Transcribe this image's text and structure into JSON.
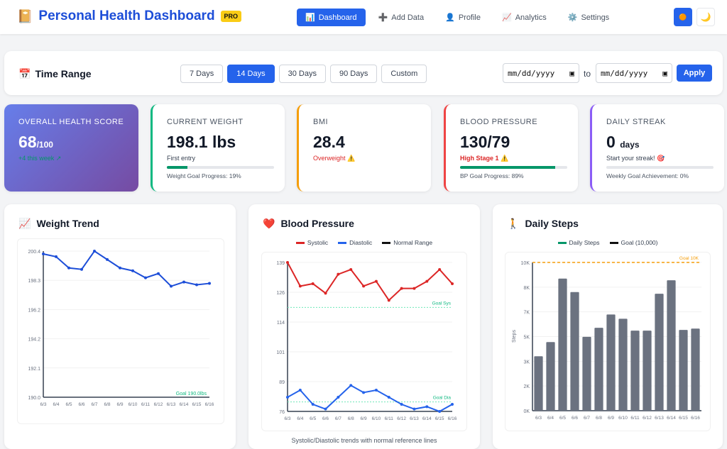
{
  "header": {
    "logo_icon": "📔",
    "title": "Personal Health Dashboard",
    "badge": "PRO",
    "nav": [
      {
        "icon": "📊",
        "label": "Dashboard"
      },
      {
        "icon": "➕",
        "label": "Add Data"
      },
      {
        "icon": "👤",
        "label": "Profile"
      },
      {
        "icon": "📈",
        "label": "Analytics"
      },
      {
        "icon": "⚙️",
        "label": "Settings"
      }
    ],
    "light_icon": "🟠",
    "dark_icon": "🌙"
  },
  "time_range": {
    "icon": "📅",
    "title": "Time Range",
    "options": [
      "7 Days",
      "14 Days",
      "30 Days",
      "90 Days",
      "Custom"
    ],
    "selected": "14 Days",
    "start_placeholder": "mm/dd/yyyy",
    "end_placeholder": "mm/dd/yyyy",
    "to": "to",
    "apply": "Apply"
  },
  "stats": {
    "health": {
      "label": "OVERALL HEALTH SCORE",
      "value": "68",
      "suffix": "/100",
      "change": "+4 this week ↗"
    },
    "weight": {
      "label": "CURRENT WEIGHT",
      "value": "198.1 lbs",
      "sub": "First entry",
      "progress": 19,
      "foot": "Weight Goal Progress: 19%"
    },
    "bmi": {
      "label": "BMI",
      "value": "28.4",
      "sub": "Overweight ⚠️"
    },
    "bp": {
      "label": "BLOOD PRESSURE",
      "value": "130/79",
      "sub": "High Stage 1 ⚠️",
      "progress": 89,
      "foot": "BP Goal Progress: 89%"
    },
    "streak": {
      "label": "DAILY STREAK",
      "value": "0",
      "unit": "days",
      "sub": "Start your streak! 🎯",
      "progress": 0,
      "foot": "Weekly Goal Achievement: 0%"
    }
  },
  "colors": {
    "primary": "#2563eb",
    "systolic": "#dc2626",
    "diastolic": "#2563eb",
    "goal": "#10b981",
    "steps_bar": "#6b7280",
    "steps_goal": "#f59e0b",
    "health_grad_start": "#667eea",
    "health_grad_end": "#764ba2"
  },
  "charts": {
    "weight": {
      "icon": "📈",
      "title": "Weight Trend"
    },
    "bp": {
      "icon": "❤️",
      "title": "Blood Pressure",
      "caption": "Systolic/Diastolic trends with normal reference lines"
    },
    "steps": {
      "icon": "🚶",
      "title": "Daily Steps"
    }
  },
  "chart_data": [
    {
      "type": "line",
      "x": [
        "6/3",
        "6/4",
        "6/5",
        "6/6",
        "6/7",
        "6/8",
        "6/9",
        "6/10",
        "6/11",
        "6/12",
        "6/13",
        "6/14",
        "6/15",
        "6/16"
      ],
      "series": [
        {
          "values": [
            200.2,
            200.0,
            199.2,
            199.1,
            200.4,
            199.8,
            199.2,
            199.0,
            198.5,
            198.8,
            197.9,
            198.2,
            198.0,
            198.1
          ]
        }
      ],
      "ylim": [
        190.0,
        200.4
      ],
      "yticks": [
        "190.0",
        "192.1",
        "194.2",
        "196.2",
        "198.3",
        "200.4"
      ],
      "goal": 190.0,
      "goal_label": "Goal 190.0lbs",
      "grid": true
    },
    {
      "type": "line",
      "x": [
        "6/3",
        "6/4",
        "6/5",
        "6/6",
        "6/7",
        "6/8",
        "6/9",
        "6/10",
        "6/11",
        "6/12",
        "6/13",
        "6/14",
        "6/15",
        "6/16"
      ],
      "series": [
        {
          "name": "Systolic",
          "values": [
            139,
            129,
            130,
            126,
            134,
            136,
            129,
            131,
            123,
            128,
            128,
            131,
            136,
            130
          ]
        },
        {
          "name": "Diastolic",
          "values": [
            82,
            85,
            79,
            77,
            82,
            87,
            84,
            85,
            82,
            79,
            77,
            78,
            76,
            79
          ]
        }
      ],
      "legend": [
        "Systolic",
        "Diastolic",
        "Normal Range"
      ],
      "legend_position": "top",
      "ylim": [
        76,
        139
      ],
      "yticks": [
        "76",
        "89",
        "101",
        "114",
        "126",
        "139"
      ],
      "goals": [
        {
          "value": 120,
          "label": "Goal Sys"
        },
        {
          "value": 80,
          "label": "Goal Dia"
        }
      ],
      "grid": true
    },
    {
      "type": "bar",
      "categories": [
        "6/3",
        "6/4",
        "6/5",
        "6/6",
        "6/7",
        "6/8",
        "6/9",
        "6/10",
        "6/11",
        "6/12",
        "6/13",
        "6/14",
        "6/15",
        "6/16"
      ],
      "values": [
        3670,
        4630,
        8910,
        8000,
        4980,
        5590,
        6490,
        6200,
        5400,
        5400,
        7890,
        8800,
        5450,
        5540
      ],
      "legend": [
        "Daily Steps",
        "Goal (10,000)"
      ],
      "legend_position": "top",
      "ylabel": "Steps",
      "ylim": [
        0,
        10000
      ],
      "yticks": [
        "0K",
        "2K",
        "3K",
        "5K",
        "7K",
        "8K",
        "10K"
      ],
      "goal": 10000,
      "goal_label": "Goal 10K",
      "grid": true
    }
  ]
}
